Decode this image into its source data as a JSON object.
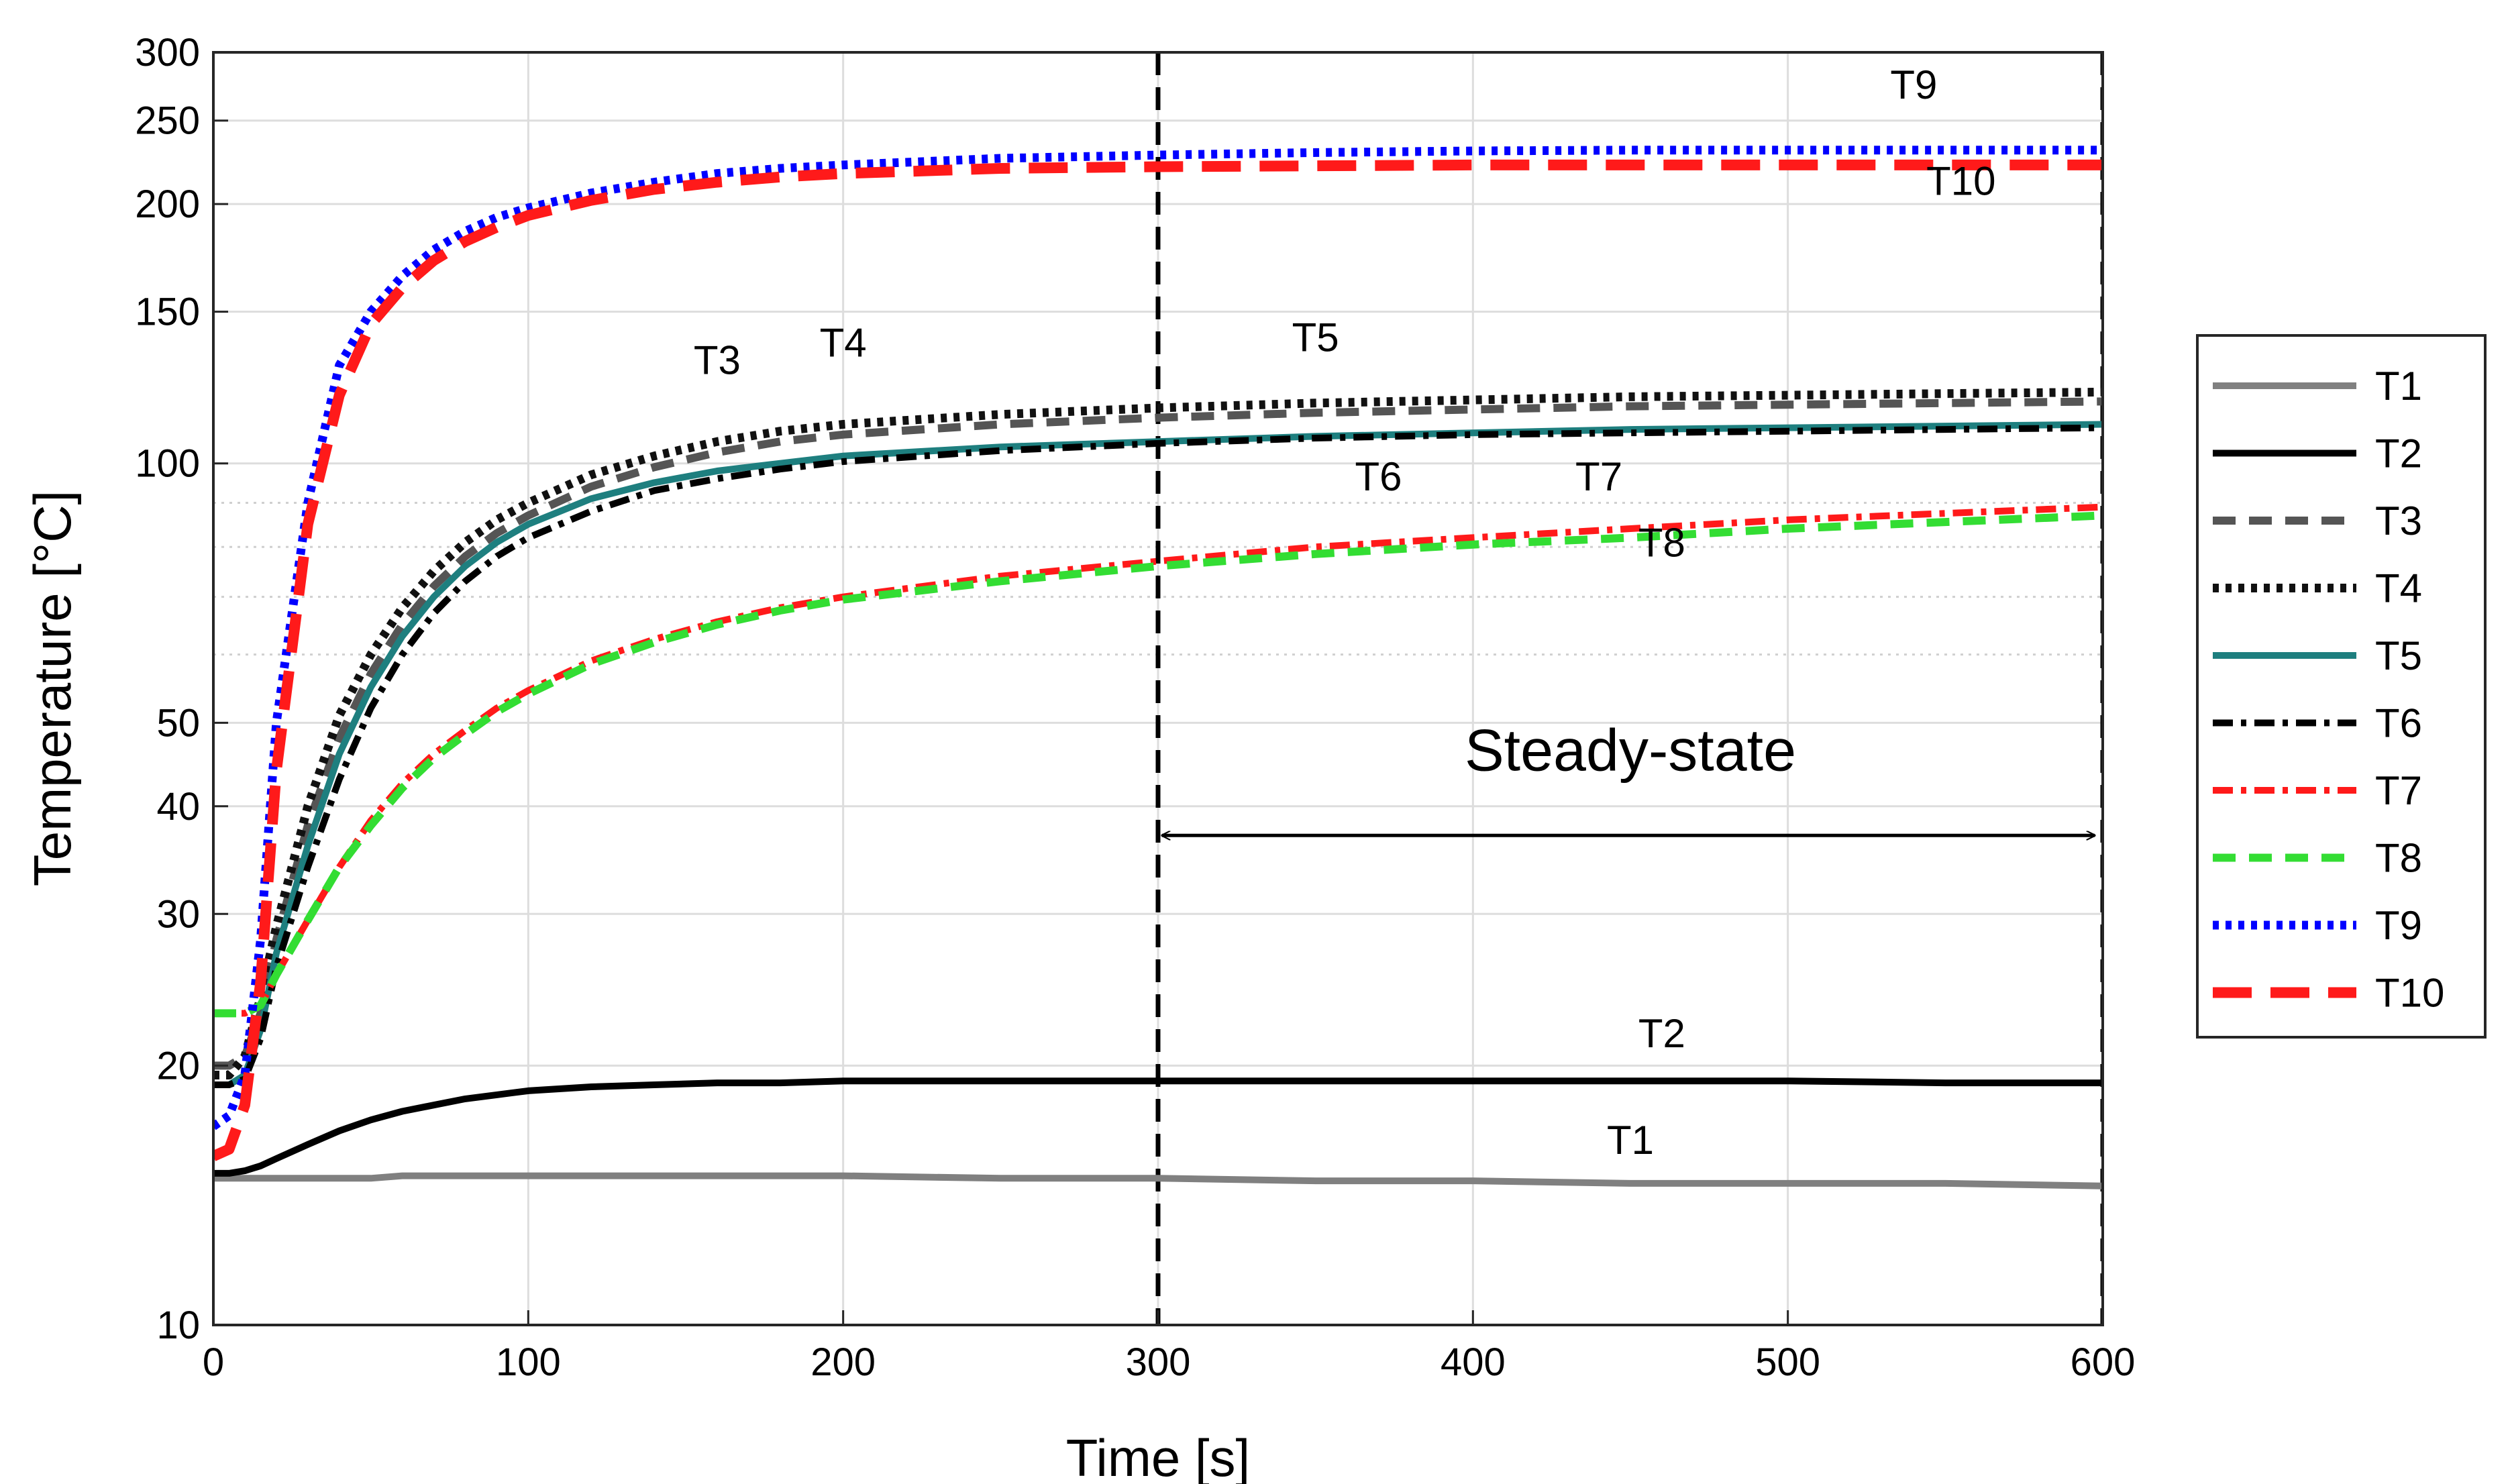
{
  "chart_data": {
    "type": "line",
    "title": "",
    "xlabel": "Time [s]",
    "ylabel": "Temperature [°C]",
    "xlim": [
      0,
      600
    ],
    "ylim": [
      10,
      300
    ],
    "yscale": "log",
    "grid": true,
    "x_ticks": [
      0,
      100,
      200,
      300,
      400,
      500,
      600
    ],
    "y_ticks": [
      10,
      20,
      30,
      40,
      50,
      100,
      150,
      200,
      250,
      300
    ],
    "y_minor_gridlines": [
      60,
      70,
      80,
      90
    ],
    "legend_position": "right-outside",
    "x": [
      0,
      5,
      10,
      15,
      20,
      30,
      40,
      50,
      60,
      70,
      80,
      90,
      100,
      120,
      140,
      160,
      180,
      200,
      250,
      300,
      350,
      400,
      450,
      500,
      550,
      600
    ],
    "series": [
      {
        "name": "T1",
        "color": "#808080",
        "style": "solid",
        "values": [
          14.8,
          14.8,
          14.8,
          14.8,
          14.8,
          14.8,
          14.8,
          14.8,
          14.9,
          14.9,
          14.9,
          14.9,
          14.9,
          14.9,
          14.9,
          14.9,
          14.9,
          14.9,
          14.8,
          14.8,
          14.7,
          14.7,
          14.6,
          14.6,
          14.6,
          14.5
        ]
      },
      {
        "name": "T2",
        "color": "#000000",
        "style": "solid",
        "values": [
          15.0,
          15.0,
          15.1,
          15.3,
          15.6,
          16.2,
          16.8,
          17.3,
          17.7,
          18.0,
          18.3,
          18.5,
          18.7,
          18.9,
          19.0,
          19.1,
          19.1,
          19.2,
          19.2,
          19.2,
          19.2,
          19.2,
          19.2,
          19.2,
          19.1,
          19.1
        ]
      },
      {
        "name": "T3",
        "color": "#555555",
        "style": "dash",
        "values": [
          20.0,
          20.0,
          20.5,
          23.0,
          28.0,
          38.0,
          48.0,
          57.0,
          65.0,
          72.0,
          78.0,
          83.0,
          87.0,
          94.0,
          99.0,
          103.0,
          106.0,
          108.0,
          111.0,
          113.0,
          114.5,
          115.5,
          116.5,
          117.0,
          117.5,
          118.0
        ]
      },
      {
        "name": "T4",
        "color": "#111111",
        "style": "dot",
        "values": [
          19.5,
          19.5,
          20.5,
          24.0,
          29.0,
          40.0,
          51.0,
          60.0,
          68.0,
          75.0,
          81.0,
          86.0,
          90.0,
          97.0,
          102.0,
          106.0,
          109.0,
          111.0,
          114.0,
          116.0,
          117.5,
          118.5,
          119.5,
          120.0,
          120.5,
          121.0
        ]
      },
      {
        "name": "T5",
        "color": "#1e7f7f",
        "style": "solid",
        "values": [
          19.0,
          19.0,
          19.5,
          22.0,
          27.0,
          36.0,
          46.0,
          55.0,
          63.0,
          70.0,
          76.0,
          81.0,
          85.0,
          91.0,
          95.0,
          98.0,
          100.0,
          102.0,
          104.5,
          106.0,
          107.5,
          108.5,
          109.5,
          110.0,
          110.5,
          111.0
        ]
      },
      {
        "name": "T6",
        "color": "#000000",
        "style": "dashdot",
        "values": [
          19.0,
          19.0,
          19.3,
          21.5,
          26.0,
          34.0,
          43.0,
          52.0,
          60.0,
          67.0,
          73.0,
          78.0,
          82.0,
          88.0,
          93.0,
          96.0,
          98.5,
          100.5,
          103.5,
          105.5,
          107.0,
          108.0,
          108.5,
          109.0,
          109.5,
          110.0
        ]
      },
      {
        "name": "T7",
        "color": "#ff1a1a",
        "style": "dashdot",
        "values": [
          23.0,
          23.0,
          23.0,
          23.5,
          25.5,
          29.5,
          34.0,
          38.5,
          42.5,
          46.0,
          49.0,
          52.0,
          54.5,
          59.0,
          62.5,
          65.5,
          68.0,
          70.0,
          74.0,
          77.0,
          80.0,
          82.0,
          84.0,
          86.0,
          87.5,
          89.0
        ]
      },
      {
        "name": "T8",
        "color": "#33dd33",
        "style": "dash",
        "values": [
          23.0,
          23.0,
          23.0,
          23.5,
          25.5,
          29.5,
          34.0,
          38.0,
          42.0,
          45.5,
          48.5,
          51.5,
          54.0,
          58.5,
          62.0,
          65.0,
          67.5,
          69.5,
          73.0,
          76.0,
          78.5,
          80.5,
          82.0,
          84.0,
          85.5,
          87.0
        ]
      },
      {
        "name": "T9",
        "color": "#0000ff",
        "style": "dot",
        "values": [
          17.0,
          17.5,
          19.5,
          28.0,
          50.0,
          90.0,
          130.0,
          150.0,
          165.0,
          177.0,
          186.0,
          193.0,
          198.0,
          206.0,
          212.0,
          217.0,
          220.0,
          222.0,
          226.0,
          228.0,
          229.5,
          230.5,
          231.0,
          231.0,
          231.0,
          231.0
        ]
      },
      {
        "name": "T10",
        "color": "#ff1a1a",
        "style": "longdash",
        "values": [
          15.7,
          16.0,
          18.0,
          25.0,
          44.0,
          85.0,
          120.0,
          145.0,
          160.0,
          172.0,
          181.0,
          188.0,
          194.0,
          202.0,
          208.0,
          212.0,
          215.0,
          217.0,
          220.0,
          221.0,
          221.5,
          222.0,
          222.0,
          222.0,
          222.0,
          222.0
        ]
      }
    ],
    "series_labels": [
      {
        "text": "T1",
        "x": 450,
        "y": 15.8
      },
      {
        "text": "T2",
        "x": 460,
        "y": 21.0
      },
      {
        "text": "T3",
        "x": 160,
        "y": 127
      },
      {
        "text": "T4",
        "x": 200,
        "y": 133
      },
      {
        "text": "T5",
        "x": 350,
        "y": 135
      },
      {
        "text": "T6",
        "x": 370,
        "y": 93
      },
      {
        "text": "T7",
        "x": 440,
        "y": 93
      },
      {
        "text": "T8",
        "x": 460,
        "y": 78
      },
      {
        "text": "T9",
        "x": 540,
        "y": 265
      },
      {
        "text": "T10",
        "x": 555,
        "y": 205
      }
    ],
    "annotations": {
      "steady_state_text": "Steady-state",
      "steady_state_range": [
        300,
        600
      ],
      "steady_state_arrow_y": 37,
      "steady_state_text_y": 44,
      "vertical_markers": [
        300,
        600
      ]
    }
  }
}
